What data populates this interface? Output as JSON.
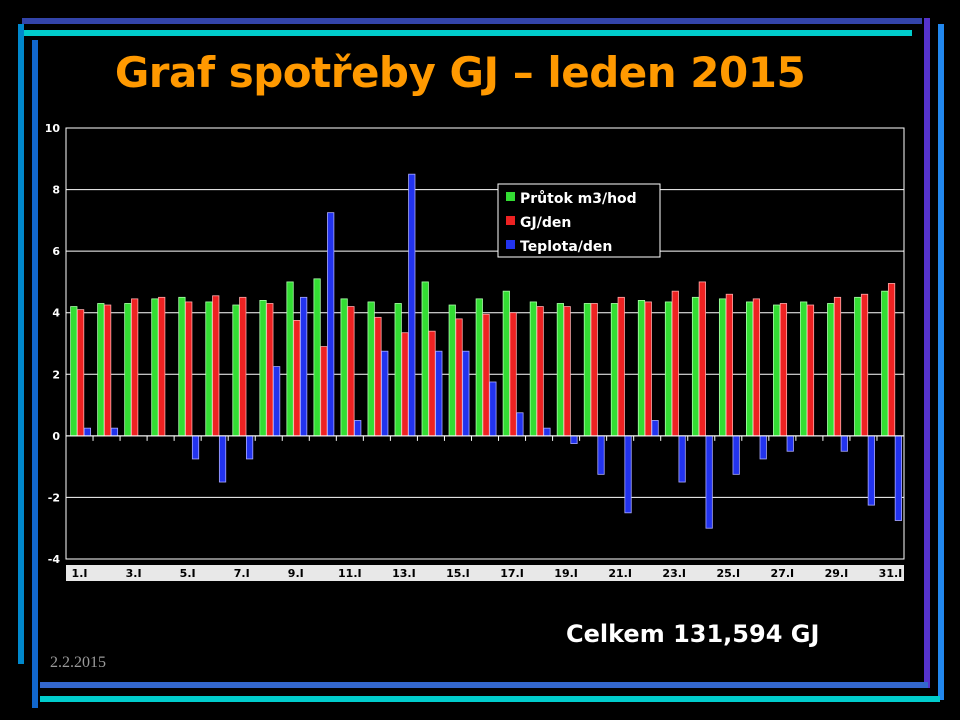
{
  "slide": {
    "title": "Graf spotřeby GJ – leden 2015",
    "total": "Celkem 131,594 GJ",
    "date": "2.2.2015"
  },
  "colors": {
    "background": "#000000",
    "title": "#ff9900",
    "plot_background": "#000000",
    "series_green": "#33dd33",
    "series_red": "#ee2222",
    "series_blue": "#2233ee"
  },
  "chart_data": {
    "type": "bar",
    "title": "",
    "xlabel": "",
    "ylabel": "",
    "ylim": [
      -4,
      10
    ],
    "yticks": [
      -4,
      -2,
      0,
      2,
      4,
      6,
      8,
      10
    ],
    "grid": true,
    "legend_position": "top-center",
    "categories": [
      "1.I",
      "2.I",
      "3.I",
      "4.I",
      "5.I",
      "6.I",
      "7.I",
      "8.I",
      "9.I",
      "10.I",
      "11.I",
      "12.I",
      "13.I",
      "14.I",
      "15.I",
      "16.I",
      "17.I",
      "18.I",
      "19.I",
      "20.I",
      "21.I",
      "22.I",
      "23.I",
      "24.I",
      "25.I",
      "26.I",
      "27.I",
      "28.I",
      "29.I",
      "30.I",
      "31.I"
    ],
    "tick_labels": [
      "1.I",
      "",
      "3.I",
      "",
      "5.I",
      "",
      "7.I",
      "",
      "9.I",
      "",
      "11.I",
      "",
      "13.I",
      "",
      "15.I",
      "",
      "17.I",
      "",
      "19.I",
      "",
      "21.I",
      "",
      "23.I",
      "",
      "25.I",
      "",
      "27.I",
      "",
      "29.I",
      "",
      "31.I"
    ],
    "series": [
      {
        "name": "Průtok m3/hod",
        "values": [
          4.2,
          4.3,
          4.3,
          4.45,
          4.5,
          4.35,
          4.25,
          4.4,
          5.0,
          5.1,
          4.45,
          4.35,
          4.3,
          5.0,
          4.25,
          4.45,
          4.7,
          4.35,
          4.3,
          4.3,
          4.3,
          4.4,
          4.35,
          4.5,
          4.45,
          4.35,
          4.25,
          4.35,
          4.3,
          4.5,
          4.7
        ]
      },
      {
        "name": "GJ/den",
        "values": [
          4.1,
          4.25,
          4.45,
          4.5,
          4.35,
          4.55,
          4.5,
          4.3,
          3.75,
          2.9,
          4.2,
          3.85,
          3.35,
          3.4,
          3.8,
          3.95,
          4.0,
          4.2,
          4.2,
          4.3,
          4.5,
          4.35,
          4.7,
          5.0,
          4.6,
          4.45,
          4.3,
          4.25,
          4.5,
          4.6,
          4.95
        ]
      },
      {
        "name": "Teplota/den",
        "values": [
          0.25,
          0.25,
          0,
          0,
          -0.75,
          -1.5,
          -0.75,
          2.25,
          4.5,
          7.25,
          0.5,
          2.75,
          8.5,
          2.75,
          2.75,
          1.75,
          0.75,
          0.25,
          -0.25,
          -1.25,
          -2.5,
          0.5,
          -1.5,
          -3.0,
          -1.25,
          -0.75,
          -0.5,
          0,
          -0.5,
          -2.25,
          -2.75
        ]
      }
    ]
  }
}
